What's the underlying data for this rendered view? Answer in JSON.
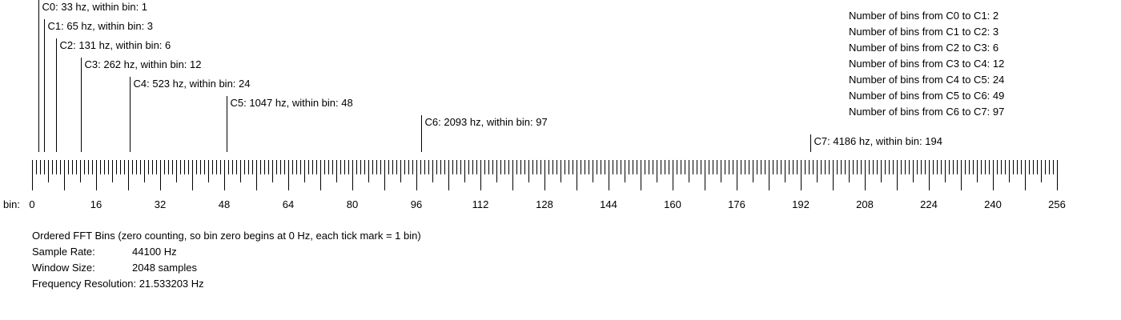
{
  "axis": {
    "prefix": "bin:",
    "min": 0,
    "max": 256,
    "tick_step": 1,
    "label_step": 16,
    "labels": [
      "0",
      "16",
      "32",
      "48",
      "64",
      "80",
      "96",
      "112",
      "128",
      "144",
      "160",
      "176",
      "192",
      "208",
      "224",
      "240",
      "256"
    ]
  },
  "markers": [
    {
      "bin": 1.53,
      "label": "C0: 33 hz, within bin: 1"
    },
    {
      "bin": 3.04,
      "label": "C1: 65 hz, within bin: 3"
    },
    {
      "bin": 6.08,
      "label": "C2: 131 hz, within bin: 6"
    },
    {
      "bin": 12.15,
      "label": "C3: 262 hz, within bin: 12"
    },
    {
      "bin": 24.3,
      "label": "C4: 523 hz, within bin: 24"
    },
    {
      "bin": 48.61,
      "label": "C5: 1047 hz, within bin: 48"
    },
    {
      "bin": 97.2,
      "label": "C6: 2093 hz, within bin: 97"
    },
    {
      "bin": 194.4,
      "label": "C7: 4186 hz, within bin: 194"
    }
  ],
  "summary": [
    "Number of bins from C0 to C1: 2",
    "Number of bins from C1 to C2: 3",
    "Number of bins from C2 to C3: 6",
    "Number of bins from C3 to C4: 12",
    "Number of bins from C4 to C5: 24",
    "Number of bins from C5 to C6: 49",
    "Number of bins from C6 to C7: 97"
  ],
  "info": {
    "caption": "Ordered FFT Bins (zero counting, so bin zero begins at 0 Hz, each tick mark = 1 bin)",
    "sample_rate_label": "Sample Rate:",
    "sample_rate_value": "44100 Hz",
    "window_size_label": "Window Size:",
    "window_size_value": "2048 samples",
    "freq_res_label": "Frequency Resolution:",
    "freq_res_value": "21.533203 Hz"
  }
}
